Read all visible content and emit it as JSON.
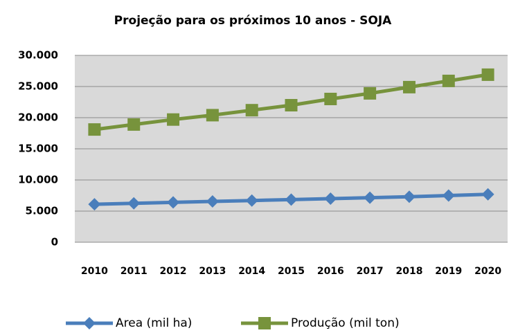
{
  "chart_data": {
    "type": "line",
    "title": "Projeção para os próximos 10 anos - SOJA",
    "categories": [
      "2010",
      "2011",
      "2012",
      "2013",
      "2014",
      "2015",
      "2016",
      "2017",
      "2018",
      "2019",
      "2020"
    ],
    "series": [
      {
        "name": "Area (mil ha)",
        "color": "#4a7ebb",
        "marker": "diamond",
        "values": [
          6100,
          6250,
          6400,
          6550,
          6700,
          6850,
          7000,
          7150,
          7300,
          7500,
          7700
        ]
      },
      {
        "name": "Produção (mil ton)",
        "color": "#77933c",
        "marker": "square",
        "values": [
          18100,
          18900,
          19700,
          20400,
          21200,
          22000,
          23000,
          23900,
          24900,
          25900,
          26900
        ]
      }
    ],
    "ylim": [
      0,
      30000
    ],
    "yticks": [
      0,
      {
        "value": 5000,
        "label": "5.000"
      },
      {
        "value": 10000,
        "label": "10.000"
      },
      {
        "value": 15000,
        "label": "15.000"
      },
      {
        "value": 20000,
        "label": "20.000"
      },
      {
        "value": 25000,
        "label": "25.000"
      },
      {
        "value": 30000,
        "label": "30.000"
      }
    ],
    "grid": true,
    "legend": "bottom"
  }
}
